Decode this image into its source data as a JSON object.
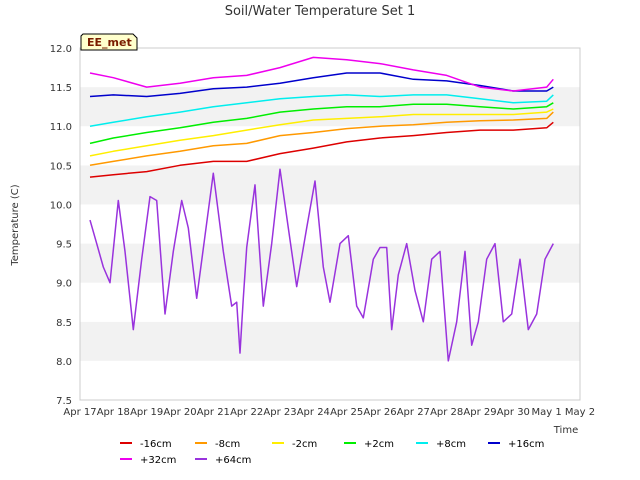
{
  "chart_data": {
    "type": "line",
    "title": "Soil/Water Temperature Set 1",
    "xlabel": "Time",
    "ylabel": "Temperature (C)",
    "ylim": [
      7.5,
      12.0
    ],
    "xlim": [
      "Apr 17",
      "May 2"
    ],
    "yticks": [
      7.5,
      8.0,
      8.5,
      9.0,
      9.5,
      10.0,
      10.5,
      11.0,
      11.5,
      12.0
    ],
    "xticks": [
      "Apr 17",
      "Apr 18",
      "Apr 19",
      "Apr 20",
      "Apr 21",
      "Apr 22",
      "Apr 23",
      "Apr 24",
      "Apr 25",
      "Apr 26",
      "Apr 27",
      "Apr 28",
      "Apr 29",
      "Apr 30",
      "May 1",
      "May 2"
    ],
    "badge": "EE_met",
    "grid": "horizontal bands",
    "legend_position": "bottom",
    "series": [
      {
        "name": "-16cm",
        "color": "#dd0000",
        "x": [
          0.3,
          1,
          2,
          3,
          4,
          5,
          6,
          7,
          8,
          9,
          10,
          11,
          12,
          13,
          14,
          14.2
        ],
        "y": [
          10.35,
          10.38,
          10.42,
          10.5,
          10.55,
          10.55,
          10.65,
          10.72,
          10.8,
          10.85,
          10.88,
          10.92,
          10.95,
          10.95,
          10.98,
          11.05
        ]
      },
      {
        "name": "-8cm",
        "color": "#ff9900",
        "x": [
          0.3,
          1,
          2,
          3,
          4,
          5,
          6,
          7,
          8,
          9,
          10,
          11,
          12,
          13,
          14,
          14.2
        ],
        "y": [
          10.5,
          10.55,
          10.62,
          10.68,
          10.75,
          10.78,
          10.88,
          10.92,
          10.97,
          11.0,
          11.02,
          11.05,
          11.07,
          11.08,
          11.1,
          11.18
        ]
      },
      {
        "name": "-2cm",
        "color": "#ffee00",
        "x": [
          0.3,
          1,
          2,
          3,
          4,
          5,
          6,
          7,
          8,
          9,
          10,
          11,
          12,
          13,
          14,
          14.2
        ],
        "y": [
          10.62,
          10.68,
          10.75,
          10.82,
          10.88,
          10.95,
          11.02,
          11.08,
          11.1,
          11.12,
          11.15,
          11.15,
          11.15,
          11.15,
          11.18,
          11.22
        ]
      },
      {
        "name": "+2cm",
        "color": "#00ee00",
        "x": [
          0.3,
          1,
          2,
          3,
          4,
          5,
          6,
          7,
          8,
          9,
          10,
          11,
          12,
          13,
          14,
          14.2
        ],
        "y": [
          10.78,
          10.85,
          10.92,
          10.98,
          11.05,
          11.1,
          11.18,
          11.22,
          11.25,
          11.25,
          11.28,
          11.28,
          11.25,
          11.22,
          11.25,
          11.3
        ]
      },
      {
        "name": "+8cm",
        "color": "#00eeee",
        "x": [
          0.3,
          1,
          2,
          3,
          4,
          5,
          6,
          7,
          8,
          9,
          10,
          11,
          12,
          13,
          14,
          14.2
        ],
        "y": [
          11.0,
          11.05,
          11.12,
          11.18,
          11.25,
          11.3,
          11.35,
          11.38,
          11.4,
          11.38,
          11.4,
          11.4,
          11.35,
          11.3,
          11.32,
          11.4
        ]
      },
      {
        "name": "+16cm",
        "color": "#0000cc",
        "x": [
          0.3,
          1,
          2,
          3,
          4,
          5,
          6,
          7,
          8,
          9,
          10,
          11,
          12,
          13,
          14,
          14.2
        ],
        "y": [
          11.38,
          11.4,
          11.38,
          11.42,
          11.48,
          11.5,
          11.55,
          11.62,
          11.68,
          11.68,
          11.6,
          11.58,
          11.52,
          11.45,
          11.45,
          11.5
        ]
      },
      {
        "name": "+32cm",
        "color": "#ee00ee",
        "x": [
          0.3,
          1,
          2,
          3,
          4,
          5,
          6,
          7,
          8,
          9,
          10,
          11,
          12,
          13,
          14,
          14.2
        ],
        "y": [
          11.68,
          11.62,
          11.5,
          11.55,
          11.62,
          11.65,
          11.75,
          11.88,
          11.85,
          11.8,
          11.72,
          11.65,
          11.5,
          11.45,
          11.5,
          11.6
        ]
      },
      {
        "name": "+64cm",
        "color": "#9933dd",
        "x": [
          0.3,
          0.5,
          0.7,
          0.9,
          1.15,
          1.35,
          1.6,
          1.85,
          2.1,
          2.3,
          2.55,
          2.8,
          3.05,
          3.25,
          3.5,
          3.75,
          4.0,
          4.3,
          4.55,
          4.7,
          4.8,
          4.9,
          5.0,
          5.25,
          5.5,
          5.75,
          6.0,
          6.25,
          6.5,
          6.8,
          7.05,
          7.3,
          7.5,
          7.8,
          8.05,
          8.3,
          8.5,
          8.8,
          9.0,
          9.2,
          9.35,
          9.55,
          9.8,
          10.05,
          10.3,
          10.55,
          10.8,
          11.05,
          11.3,
          11.55,
          11.75,
          11.95,
          12.2,
          12.45,
          12.7,
          12.95,
          13.2,
          13.45,
          13.7,
          13.95,
          14.2
        ],
        "y": [
          9.8,
          9.5,
          9.2,
          9.0,
          10.05,
          9.4,
          8.4,
          9.3,
          10.1,
          10.05,
          8.6,
          9.4,
          10.05,
          9.7,
          8.8,
          9.6,
          10.4,
          9.4,
          8.7,
          8.75,
          8.1,
          8.8,
          9.45,
          10.25,
          8.7,
          9.5,
          10.45,
          9.7,
          8.95,
          9.7,
          10.3,
          9.2,
          8.75,
          9.5,
          9.6,
          8.7,
          8.55,
          9.3,
          9.45,
          9.45,
          8.4,
          9.1,
          9.5,
          8.9,
          8.5,
          9.3,
          9.4,
          8.0,
          8.5,
          9.4,
          8.2,
          8.5,
          9.3,
          9.5,
          8.5,
          8.6,
          9.3,
          8.4,
          8.6,
          9.3,
          9.5
        ]
      }
    ]
  }
}
